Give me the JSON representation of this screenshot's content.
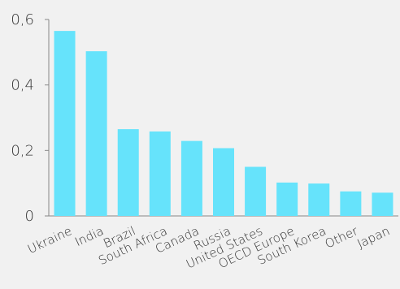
{
  "chart_data": {
    "type": "bar",
    "categories": [
      "Ukraine",
      "India",
      "Brazil",
      "South Africa",
      "Canada",
      "Russia",
      "United States",
      "OECD Europe",
      "South Korea",
      "Other",
      "Japan"
    ],
    "values": [
      0.565,
      0.503,
      0.265,
      0.258,
      0.229,
      0.207,
      0.15,
      0.102,
      0.099,
      0.075,
      0.071
    ],
    "ylim": [
      0,
      0.6
    ],
    "yticks": [
      "0",
      "0,2",
      "0,4",
      "0,6"
    ],
    "ytick_values": [
      0,
      0.2,
      0.4,
      0.6
    ],
    "title": "",
    "xlabel": "",
    "ylabel": "",
    "grid": false,
    "colors": {
      "bar": "#66e3fb",
      "axis": "#888888",
      "text": "#333333",
      "background": "#f1f1f1"
    }
  }
}
